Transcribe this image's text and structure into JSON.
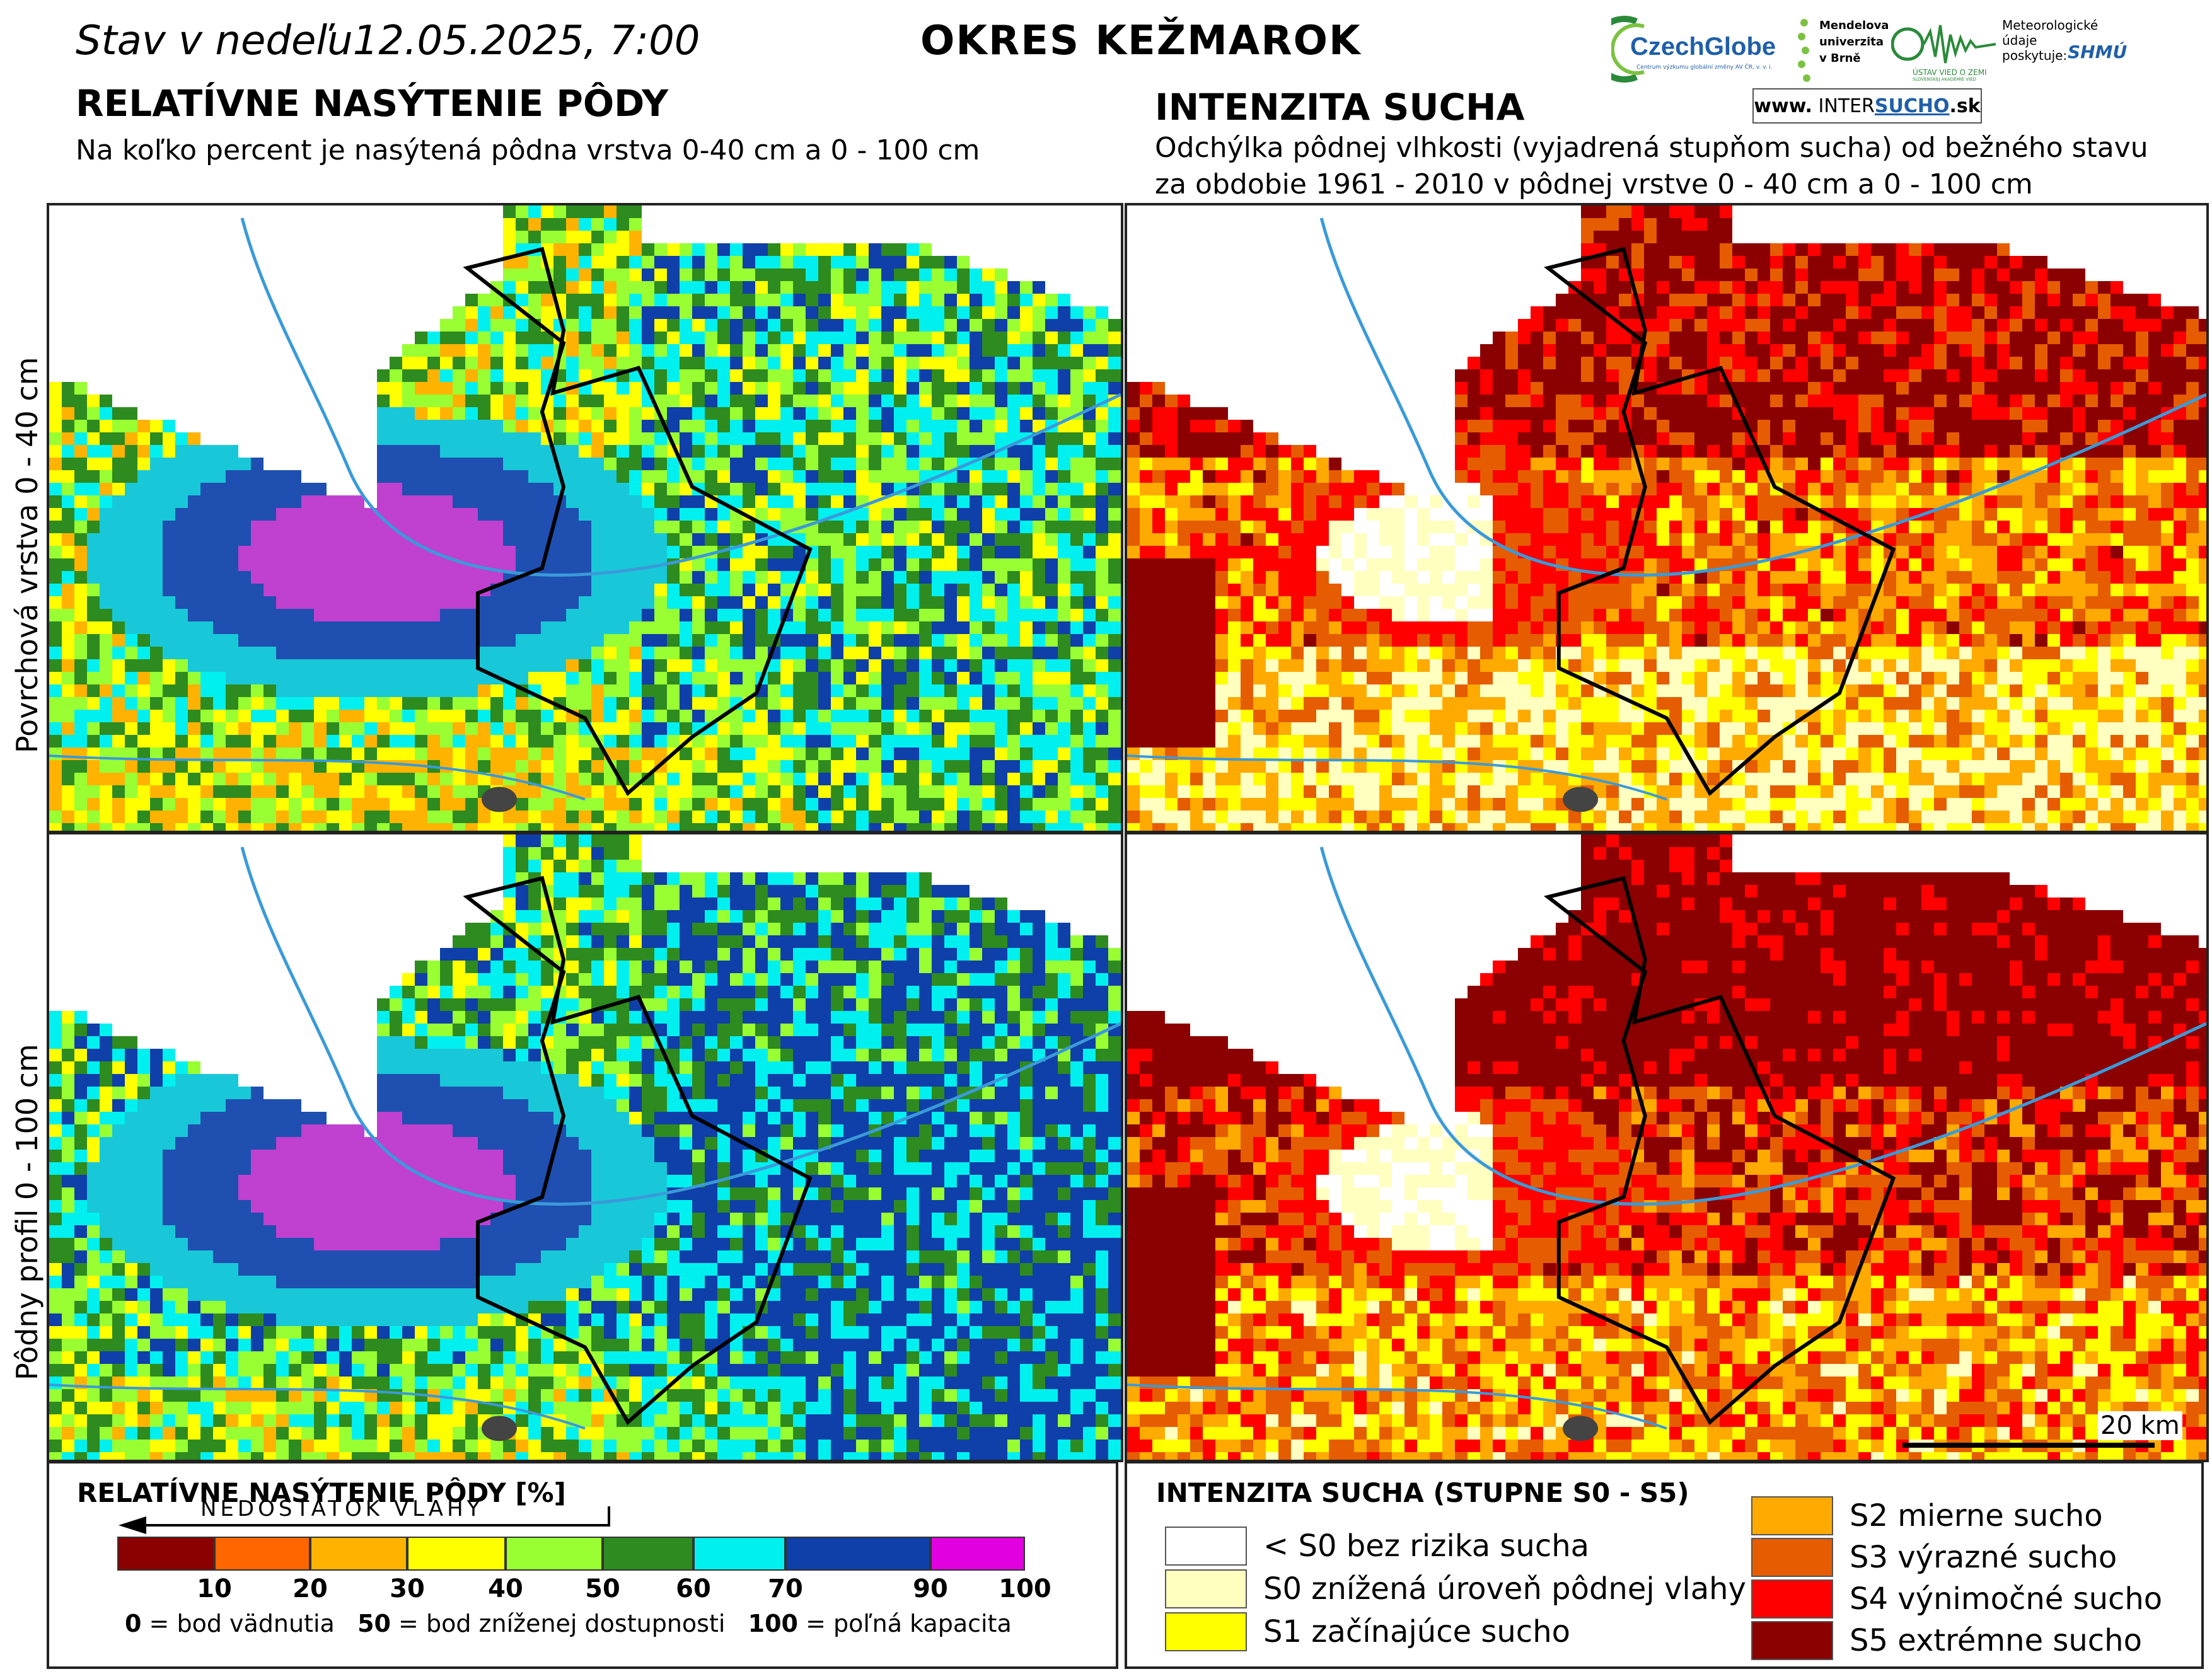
{
  "header": {
    "date_prefix": "Stav v nedeľu",
    "date_value": "12.05.2025, 7:00",
    "district": "OKRES  KEŽMAROK"
  },
  "left_section": {
    "title": "RELATÍVNE NASÝTENIE PÔDY",
    "subtitle": "Na koľko percent je nasýtená pôdna vrstva 0-40 cm a 0 - 100 cm"
  },
  "right_section": {
    "title": "INTENZITA SUCHA",
    "subtitle_line1": "Odchýlka pôdnej vlhkosti (vyjadrená stupňom sucha) od bežného stavu",
    "subtitle_line2": "za obdobie 1961 - 2010 v pôdnej vrstve 0 - 40 cm a 0 - 100 cm"
  },
  "logos": {
    "czechglobe": "CzechGlobe",
    "czechglobe_small": "Centrum výzkumu globální změny AV ČR, v. v. i.",
    "mendel_1": "Mendelova",
    "mendel_2": "univerzita",
    "mendel_3": "v Brně",
    "uvz": "ÚSTAV VIED O ZEMI",
    "uvz_small": "SLOVENSKEJ AKADÉMIE VIED",
    "meteo_1": "Meteorologické",
    "meteo_2": "údaje",
    "meteo_3": "poskytuje:",
    "shmu": "SHMÚ",
    "intersucho_www": "www.",
    "intersucho_a": "INTER",
    "intersucho_b": "SUCHO",
    "intersucho_c": ".sk"
  },
  "row_labels": {
    "top": "Povrchová vrstva 0 - 40 cm",
    "bottom": "Pôdny profil 0 - 100 cm"
  },
  "scale_bar": {
    "label": "20 km"
  },
  "saturation_legend": {
    "title": "RELATÍVNE NASÝTENIE PÔDY [%]",
    "arrow_label": "NEDOSTATOK VLAHY",
    "ticks": [
      "10",
      "20",
      "30",
      "40",
      "50",
      "60",
      "70",
      "90",
      "100"
    ],
    "colors": [
      "#8b0000",
      "#ff6600",
      "#ffb300",
      "#ffff00",
      "#99ff33",
      "#2e8b1f",
      "#00f0f0",
      "#0f3fa8",
      "#e000e0"
    ],
    "note_0_key": "0",
    "note_0_text": " = bod vädnutia",
    "note_50_key": "50",
    "note_50_text": " = bod zníženej dostupnosti",
    "note_100_key": "100",
    "note_100_text": " = poľná kapacita"
  },
  "drought_legend": {
    "title": "INTENZITA SUCHA (STUPNE S0 - S5)",
    "items": [
      {
        "label": "< S0 bez rizika sucha",
        "color": "#ffffff"
      },
      {
        "label": "S0 znížená úroveň pôdnej vlahy",
        "color": "#ffffc0"
      },
      {
        "label": "S1 začínajúce sucho",
        "color": "#ffff00"
      },
      {
        "label": "S2 mierne sucho",
        "color": "#ffaa00"
      },
      {
        "label": "S3 výrazné sucho",
        "color": "#e65c00"
      },
      {
        "label": "S4 výnimočné sucho",
        "color": "#ff0000"
      },
      {
        "label": "S5 extrémne sucho",
        "color": "#8b0000"
      }
    ]
  }
}
